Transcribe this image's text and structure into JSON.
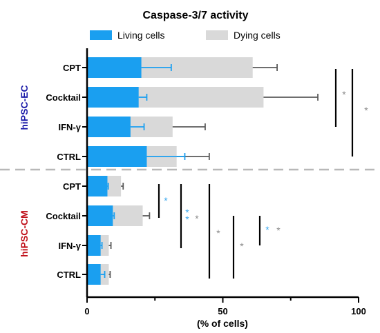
{
  "chart_data": {
    "type": "bar",
    "orientation": "horizontal",
    "stacked": true,
    "title": "Caspase-3/7 activity",
    "xlabel": "(% of cells)",
    "xlim": [
      0,
      100
    ],
    "xticks": [
      "0",
      "50",
      "100"
    ],
    "legend": {
      "placement": "top",
      "entries": [
        {
          "name": "Living cells",
          "color": "#1a9ff0"
        },
        {
          "name": "Dying cells",
          "color": "#d9d9d9"
        }
      ]
    },
    "colors": {
      "living": "#1a9ff0",
      "dying": "#d9d9d9",
      "living_star": "#3aa8ee",
      "grey_star": "#8a8a8a",
      "ec_label": "#1a1aa8",
      "cm_label": "#c0101a",
      "separator": "#b8b8b8"
    },
    "groups": [
      {
        "name": "hiPSC-EC",
        "categories": [
          {
            "label": "CPT",
            "living": 20,
            "total": 61,
            "living_err": 11,
            "total_err": 9
          },
          {
            "label": "Cocktail",
            "living": 19,
            "total": 65,
            "living_err": 3,
            "total_err": 20
          },
          {
            "label": "IFN-γ",
            "living": 16,
            "total": 31.5,
            "living_err": 5,
            "total_err": 12
          },
          {
            "label": "CTRL",
            "living": 22,
            "total": 33,
            "living_err": 14,
            "total_err": 12
          }
        ]
      },
      {
        "name": "hiPSC-CM",
        "categories": [
          {
            "label": "CPT",
            "living": 7.5,
            "total": 12.5,
            "living_err": 0.3,
            "total_err": 0.8
          },
          {
            "label": "Cocktail",
            "living": 9.5,
            "total": 20.5,
            "living_err": 0.5,
            "total_err": 2.5
          },
          {
            "label": "IFN-γ",
            "living": 5,
            "total": 8,
            "living_err": 0.5,
            "total_err": 0.8
          },
          {
            "label": "CTRL",
            "living": 5,
            "total": 8,
            "living_err": 1.5,
            "total_err": 0.5
          }
        ]
      }
    ],
    "significance_annotations": [
      {
        "symbol": "*",
        "color": "grey"
      },
      {
        "symbol": "*",
        "color": "grey"
      },
      {
        "symbol": "*",
        "color": "blue"
      },
      {
        "symbol": "**",
        "color": "blue"
      },
      {
        "symbol": "*",
        "color": "grey"
      },
      {
        "symbol": "*",
        "color": "grey"
      },
      {
        "symbol": "*",
        "color": "grey"
      },
      {
        "symbol": "*",
        "color": "blue"
      },
      {
        "symbol": "*",
        "color": "grey"
      }
    ]
  }
}
